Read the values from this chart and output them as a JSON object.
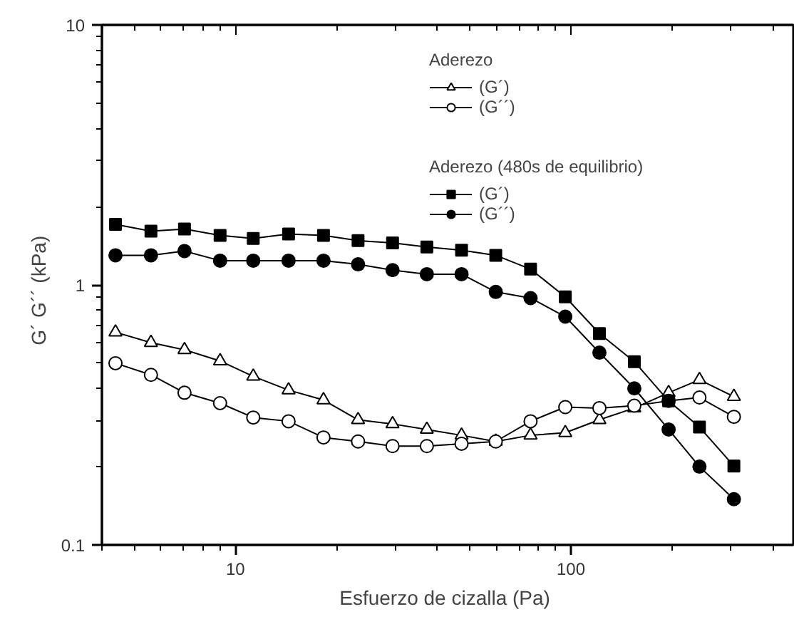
{
  "chart_data": {
    "type": "line",
    "xlabel": "Esfuerzo de cizalla  (Pa)",
    "ylabel": "G´  G´´  (kPa)",
    "legend_title": [
      "Aderezo",
      "Aderezo (480s de equilibrio)"
    ],
    "log": "xy",
    "xlim": [
      4,
      460
    ],
    "ylim": [
      0.1,
      10
    ],
    "xticks": [
      10,
      100
    ],
    "yticks": [
      0.1,
      1,
      10
    ],
    "x": [
      4.39,
      5.6,
      7.05,
      9.0,
      11.3,
      14.4,
      18.3,
      23.2,
      29.4,
      37.2,
      47.2,
      59.7,
      75.8,
      96.2,
      121.6,
      154.5,
      195.5,
      241.6,
      306
    ],
    "grid": false,
    "legend": "top right",
    "line_style": "solid",
    "series": [
      {
        "name": "(G´)",
        "color": "#000000",
        "marker": "triangle_open",
        "values": [
          0.658,
          0.6,
          0.563,
          0.51,
          0.445,
          0.394,
          0.361,
          0.303,
          0.292,
          0.278,
          0.264,
          0.25,
          0.264,
          0.27,
          0.303,
          0.336,
          0.385,
          0.432,
          0.372
        ]
      },
      {
        "name": "(G´´)",
        "color": "#000000",
        "marker": "circle_open",
        "values": [
          0.5,
          0.451,
          0.385,
          0.351,
          0.309,
          0.299,
          0.259,
          0.25,
          0.24,
          0.24,
          0.245,
          0.25,
          0.299,
          0.339,
          0.336,
          0.343,
          0.358,
          0.369,
          0.311
        ]
      },
      {
        "name": "(G´)",
        "color": "#000000",
        "marker": "square",
        "values": [
          1.71,
          1.61,
          1.64,
          1.55,
          1.51,
          1.57,
          1.55,
          1.48,
          1.45,
          1.4,
          1.36,
          1.3,
          1.15,
          0.9,
          0.65,
          0.507,
          0.358,
          0.284,
          0.201
        ]
      },
      {
        "name": "(G´´)",
        "color": "#000000",
        "marker": "circle",
        "values": [
          1.3,
          1.3,
          1.35,
          1.24,
          1.24,
          1.24,
          1.24,
          1.2,
          1.14,
          1.1,
          1.1,
          0.94,
          0.89,
          0.755,
          0.549,
          0.4,
          0.278,
          0.2,
          0.15
        ]
      }
    ]
  }
}
